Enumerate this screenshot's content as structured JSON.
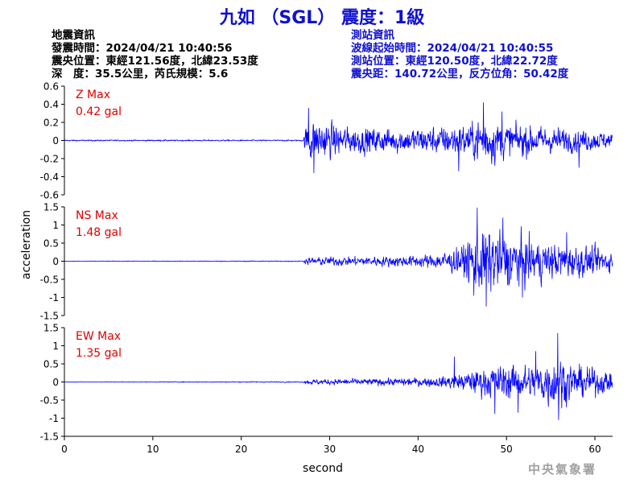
{
  "header": {
    "title": "九如 （SGL） 震度：1級",
    "event_info": {
      "heading": "地震資訊",
      "origin_time": "發震時間：2024/04/21 10:40:56",
      "epicenter": "震央位置：東經121.56度，北緯23.53度",
      "depth_magnitude": "深　度：35.5公里，芮氏規模：5.6"
    },
    "station_info": {
      "heading": "測站資訊",
      "arrival_time": "波線起始時間：2024/04/21 10:40:55",
      "station_location": "測站位置：東經120.50度，北緯22.72度",
      "distance_azimuth": "震央距：140.72公里，反方位角：50.42度"
    }
  },
  "footer": {
    "agency": "中央氣象署"
  },
  "colors": {
    "trace": "#0000ff",
    "title": "#1010d0",
    "max_label": "#e00000"
  },
  "chart_data": {
    "type": "line",
    "xlabel": "second",
    "ylabel": "acceleration",
    "xlim": [
      0,
      62
    ],
    "xticks": [
      0,
      10,
      20,
      30,
      40,
      50,
      60
    ],
    "grid": false,
    "panels": [
      {
        "name": "Z",
        "max_label": "Z Max",
        "max_value": "0.42 gal",
        "ylim": [
          -0.6,
          0.6
        ],
        "yticks": [
          -0.6,
          -0.4,
          -0.2,
          0,
          0.2,
          0.4,
          0.6
        ],
        "ytick_labels": [
          "-0.6",
          "-0.4",
          "-0.2",
          "0",
          "0.2",
          "0.4",
          "0.6"
        ],
        "envelope": [
          [
            0,
            0.01
          ],
          [
            27.0,
            0.01
          ],
          [
            27.5,
            0.36
          ],
          [
            28.5,
            0.34
          ],
          [
            32,
            0.22
          ],
          [
            38,
            0.2
          ],
          [
            42,
            0.22
          ],
          [
            46,
            0.28
          ],
          [
            47.5,
            0.42
          ],
          [
            50,
            0.28
          ],
          [
            56,
            0.2
          ],
          [
            60,
            0.16
          ],
          [
            62,
            0.12
          ]
        ],
        "peaks": [
          [
            27.6,
            0.36
          ],
          [
            28.2,
            -0.36
          ],
          [
            47.4,
            0.42
          ],
          [
            44.6,
            -0.34
          ],
          [
            49.5,
            0.32
          ],
          [
            58.2,
            -0.3
          ]
        ]
      },
      {
        "name": "NS",
        "max_label": "NS Max",
        "max_value": "1.48 gal",
        "ylim": [
          -1.5,
          1.5
        ],
        "yticks": [
          -1.5,
          -1,
          -0.5,
          0,
          0.5,
          1,
          1.5
        ],
        "ytick_labels": [
          "-1.5",
          "-1",
          "-0.5",
          "0",
          "0.5",
          "1",
          "1.5"
        ],
        "envelope": [
          [
            0,
            0.01
          ],
          [
            27.0,
            0.02
          ],
          [
            27.5,
            0.15
          ],
          [
            30,
            0.18
          ],
          [
            38,
            0.22
          ],
          [
            42,
            0.3
          ],
          [
            45,
            0.6
          ],
          [
            46.5,
            1.3
          ],
          [
            48,
            1.3
          ],
          [
            52,
            0.95
          ],
          [
            55,
            0.75
          ],
          [
            58,
            0.65
          ],
          [
            62,
            0.45
          ]
        ],
        "peaks": [
          [
            46.7,
            1.48
          ],
          [
            47.7,
            -1.25
          ],
          [
            49.6,
            1.2
          ],
          [
            46.3,
            -0.95
          ],
          [
            51.8,
            -1.0
          ],
          [
            56.8,
            0.8
          ]
        ]
      },
      {
        "name": "EW",
        "max_label": "EW Max",
        "max_value": "1.35 gal",
        "ylim": [
          -1.5,
          1.5
        ],
        "yticks": [
          -1.5,
          -1,
          -0.5,
          0,
          0.5,
          1,
          1.5
        ],
        "ytick_labels": [
          "-1.5",
          "-1",
          "-0.5",
          "0",
          "0.5",
          "1",
          "1.5"
        ],
        "envelope": [
          [
            0,
            0.01
          ],
          [
            27.0,
            0.02
          ],
          [
            27.5,
            0.1
          ],
          [
            30,
            0.12
          ],
          [
            38,
            0.15
          ],
          [
            42,
            0.2
          ],
          [
            45,
            0.35
          ],
          [
            47,
            0.55
          ],
          [
            50,
            0.7
          ],
          [
            53,
            0.7
          ],
          [
            55.8,
            1.1
          ],
          [
            57,
            0.8
          ],
          [
            60,
            0.55
          ],
          [
            62,
            0.4
          ]
        ],
        "peaks": [
          [
            55.8,
            1.35
          ],
          [
            55.9,
            -1.05
          ],
          [
            53.3,
            0.85
          ],
          [
            48.7,
            -0.88
          ],
          [
            51.3,
            -0.85
          ],
          [
            44.1,
            0.7
          ]
        ]
      }
    ]
  }
}
